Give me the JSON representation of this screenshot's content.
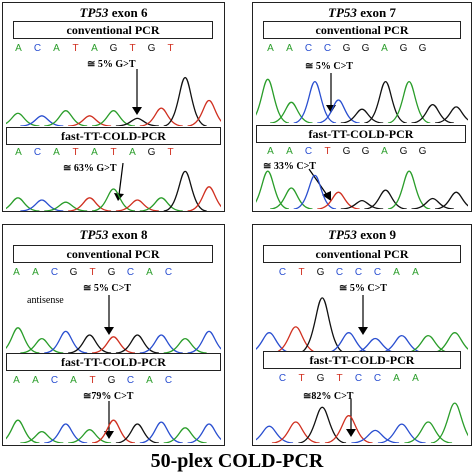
{
  "colors": {
    "A": "#2a9d2a",
    "C": "#2a4fd0",
    "G": "#111111",
    "T": "#d03020"
  },
  "panels": [
    {
      "gene": "TP53",
      "exon": " exon 6",
      "top_method": "conventional PCR",
      "top_seq": [
        "A",
        "C",
        "A",
        "T",
        "A",
        "G",
        "T",
        "G",
        "T"
      ],
      "top_label": "≅ 5% G>T",
      "bottom_method": "fast-TT-COLD-PCR",
      "bottom_seq": [
        "A",
        "C",
        "A",
        "T",
        "A",
        "T",
        "A",
        "G",
        "T"
      ],
      "bottom_label": "≅ 63% G>T"
    },
    {
      "gene": "TP53",
      "exon": " exon 7",
      "top_method": "conventional PCR",
      "top_seq": [
        "A",
        "A",
        "C",
        "C",
        "G",
        "G",
        "A",
        "G",
        "G"
      ],
      "top_label": "≅ 5% C>T",
      "bottom_method": "fast-TT-COLD-PCR",
      "bottom_seq": [
        "A",
        "A",
        "C",
        "T",
        "G",
        "G",
        "A",
        "G",
        "G"
      ],
      "bottom_label": "≅ 33% C>T"
    },
    {
      "gene": "TP53",
      "exon": " exon 8",
      "top_method": "conventional PCR",
      "top_seq": [
        "A",
        "A",
        "C",
        "G",
        "T",
        "G",
        "C",
        "A",
        "C"
      ],
      "top_label": "≅ 5% C>T",
      "extra_label": "antisense",
      "bottom_method": "fast-TT-COLD-PCR",
      "bottom_seq": [
        "A",
        "A",
        "C",
        "A",
        "T",
        "G",
        "C",
        "A",
        "C"
      ],
      "bottom_label": "≅79% C>T"
    },
    {
      "gene": "TP53",
      "exon": " exon 9",
      "top_method": "conventional PCR",
      "top_seq": [
        "C",
        "T",
        "G",
        "C",
        "C",
        "C",
        "A",
        "A"
      ],
      "top_label": "≅ 5% C>T",
      "bottom_method": "fast-TT-COLD-PCR",
      "bottom_seq": [
        "C",
        "T",
        "G",
        "T",
        "C",
        "C",
        "A",
        "A"
      ],
      "bottom_label": "≅82% C>T"
    }
  ],
  "footer": "50-plex COLD-PCR"
}
